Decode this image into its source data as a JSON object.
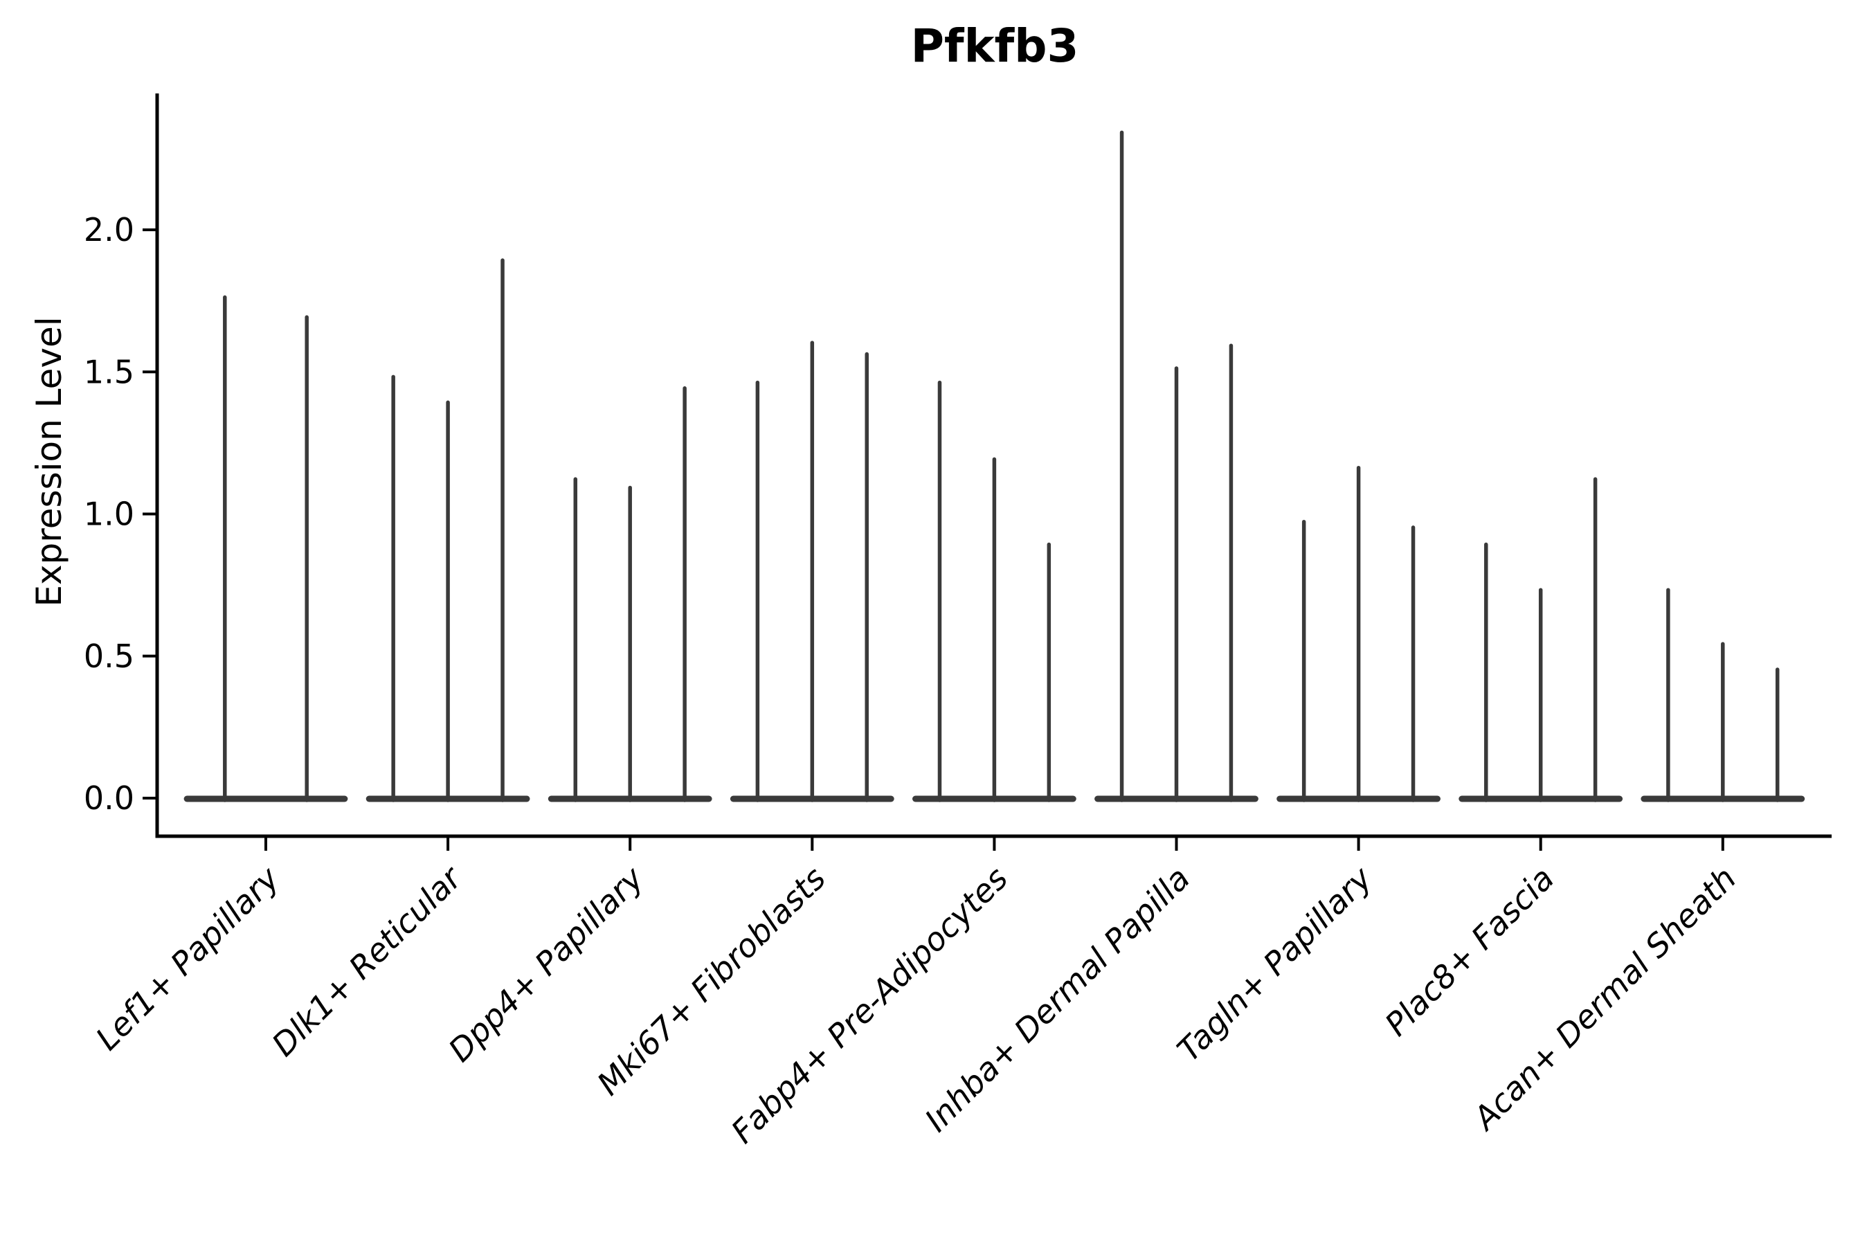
{
  "chart_data": {
    "type": "violin",
    "title": "Pfkfb3",
    "ylabel": "Expression Level",
    "xlabel": "",
    "grid": false,
    "legend": false,
    "ylim": [
      -0.134,
      2.48
    ],
    "yticks": [
      {
        "value": 0.0,
        "label": "0.0"
      },
      {
        "value": 0.5,
        "label": "0.5"
      },
      {
        "value": 1.0,
        "label": "1.0"
      },
      {
        "value": 1.5,
        "label": "1.5"
      },
      {
        "value": 2.0,
        "label": "2.0"
      }
    ],
    "categories": [
      "Lef1+ Papillary",
      "Dlk1+ Reticular",
      "Dpp4+ Papillary",
      "Mki67+ Fibroblasts",
      "Fabp4+ Pre-Adipocytes",
      "Inhba+ Dermal Papilla",
      "Tagln+ Papillary",
      "Plac8+ Fascia",
      "Acan+ Dermal Sheath"
    ],
    "description": "Single-cell expression violin plot; each category holds narrow spike-shaped violins (mass at 0 with a thin tail to the max expression value).",
    "groups": [
      {
        "category": "Lef1+ Papillary",
        "violin_maxima": [
          1.77,
          1.7
        ]
      },
      {
        "category": "Dlk1+ Reticular",
        "violin_maxima": [
          1.49,
          1.4,
          1.9
        ]
      },
      {
        "category": "Dpp4+ Papillary",
        "violin_maxima": [
          1.13,
          1.1,
          1.45
        ]
      },
      {
        "category": "Mki67+ Fibroblasts",
        "violin_maxima": [
          1.47,
          1.61,
          1.57
        ]
      },
      {
        "category": "Fabp4+ Pre-Adipocytes",
        "violin_maxima": [
          1.47,
          1.2,
          0.9
        ]
      },
      {
        "category": "Inhba+ Dermal Papilla",
        "violin_maxima": [
          2.35,
          1.52,
          1.6
        ]
      },
      {
        "category": "Tagln+ Papillary",
        "violin_maxima": [
          0.98,
          1.17,
          0.96
        ]
      },
      {
        "category": "Plac8+ Fascia",
        "violin_maxima": [
          0.9,
          0.74,
          1.13
        ]
      },
      {
        "category": "Acan+ Dermal Sheath",
        "violin_maxima": [
          0.74,
          0.55,
          0.46
        ]
      }
    ],
    "colors": {
      "violin": "#3a3a3a",
      "axis": "#000000",
      "text": "#000000",
      "background": "#ffffff"
    }
  }
}
